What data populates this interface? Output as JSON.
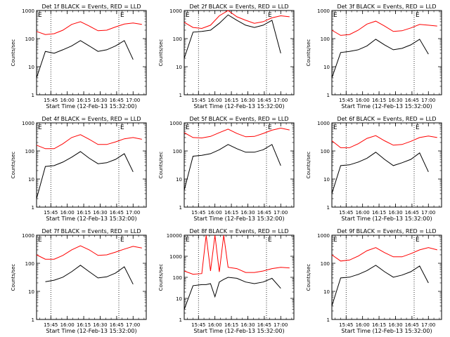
{
  "xaxis": {
    "label": "Start Time (12-Feb-13 15:32:00)",
    "ticks": [
      "15:45",
      "16:00",
      "16:15",
      "16:30",
      "16:45",
      "17:00"
    ],
    "tick_minutes": [
      13,
      28,
      43,
      58,
      73,
      88
    ],
    "xlim_minutes": [
      0,
      100
    ],
    "vlines_minutes": [
      13,
      75
    ]
  },
  "yaxis": {
    "label": "Counts/sec",
    "scale": "log",
    "ylim": [
      1,
      1000
    ],
    "ylim_det8": [
      1,
      10000
    ],
    "ticks": [
      "1",
      "10",
      "100",
      "1000"
    ],
    "ticks_det8": [
      "1",
      "10",
      "100",
      "1000",
      "10000"
    ]
  },
  "corner_label": "E",
  "colors": {
    "events": "#000000",
    "lld": "#ff0000"
  },
  "chart_data": [
    {
      "type": "line",
      "title": "Det 1f BLACK = Events, RED = LLD",
      "x": [
        0,
        8,
        16,
        24,
        32,
        40,
        48,
        56,
        64,
        72,
        80,
        88,
        96
      ],
      "series": [
        {
          "name": "Events",
          "values": [
            4,
            35,
            30,
            40,
            55,
            85,
            55,
            35,
            40,
            55,
            85,
            18,
            null
          ]
        },
        {
          "name": "LLD",
          "values": [
            180,
            140,
            150,
            200,
            320,
            400,
            280,
            190,
            200,
            260,
            330,
            360,
            320
          ]
        }
      ]
    },
    {
      "type": "line",
      "title": "Det 2f BLACK = Events, RED = LLD",
      "x": [
        0,
        8,
        16,
        24,
        32,
        40,
        48,
        56,
        64,
        72,
        80,
        88,
        96
      ],
      "series": [
        {
          "name": "Events",
          "values": [
            20,
            170,
            180,
            200,
            350,
            700,
            450,
            300,
            250,
            300,
            450,
            30,
            null
          ]
        },
        {
          "name": "LLD",
          "values": [
            380,
            250,
            230,
            300,
            650,
            1000,
            600,
            450,
            350,
            400,
            550,
            650,
            600
          ]
        }
      ]
    },
    {
      "type": "line",
      "title": "Det 3f BLACK = Events, RED = LLD",
      "x": [
        0,
        8,
        16,
        24,
        32,
        40,
        48,
        56,
        64,
        72,
        80,
        88,
        96
      ],
      "series": [
        {
          "name": "Events",
          "values": [
            4,
            32,
            35,
            40,
            55,
            95,
            60,
            40,
            45,
            60,
            95,
            28,
            null
          ]
        },
        {
          "name": "LLD",
          "values": [
            200,
            130,
            140,
            200,
            330,
            420,
            280,
            180,
            190,
            240,
            320,
            300,
            280
          ]
        }
      ]
    },
    {
      "type": "line",
      "title": "Det 4f BLACK = Events, RED = LLD",
      "x": [
        0,
        8,
        16,
        24,
        32,
        40,
        48,
        56,
        64,
        72,
        80,
        88,
        96
      ],
      "series": [
        {
          "name": "Events",
          "values": [
            2,
            28,
            30,
            40,
            60,
            95,
            55,
            35,
            38,
            50,
            80,
            18,
            null
          ]
        },
        {
          "name": "LLD",
          "values": [
            160,
            120,
            120,
            180,
            300,
            380,
            260,
            170,
            170,
            210,
            270,
            300,
            260
          ]
        }
      ]
    },
    {
      "type": "line",
      "title": "Det 5f BLACK = Events, RED = LLD",
      "x": [
        0,
        8,
        16,
        24,
        32,
        40,
        48,
        56,
        64,
        72,
        80,
        88,
        96
      ],
      "series": [
        {
          "name": "Events",
          "values": [
            4,
            65,
            70,
            80,
            110,
            170,
            120,
            90,
            90,
            110,
            170,
            30,
            null
          ]
        },
        {
          "name": "LLD",
          "values": [
            450,
            300,
            290,
            330,
            450,
            600,
            420,
            320,
            330,
            420,
            550,
            650,
            560
          ]
        }
      ]
    },
    {
      "type": "line",
      "title": "Det 6f BLACK = Events, RED = LLD",
      "x": [
        0,
        8,
        16,
        24,
        32,
        40,
        48,
        56,
        64,
        72,
        80,
        88,
        96
      ],
      "series": [
        {
          "name": "Events",
          "values": [
            3,
            30,
            32,
            40,
            55,
            90,
            50,
            30,
            38,
            50,
            85,
            18,
            null
          ]
        },
        {
          "name": "LLD",
          "values": [
            230,
            130,
            130,
            180,
            280,
            350,
            230,
            160,
            170,
            220,
            300,
            340,
            300
          ]
        }
      ]
    },
    {
      "type": "line",
      "title": "Det 7f BLACK = Events, RED = LLD",
      "x": [
        0,
        8,
        16,
        24,
        32,
        40,
        48,
        56,
        64,
        72,
        80,
        88,
        96
      ],
      "series": [
        {
          "name": "Events",
          "values": [
            null,
            22,
            25,
            32,
            50,
            85,
            50,
            30,
            33,
            45,
            75,
            18,
            null
          ]
        },
        {
          "name": "LLD",
          "values": [
            200,
            140,
            140,
            190,
            300,
            420,
            300,
            190,
            200,
            250,
            320,
            400,
            350
          ]
        }
      ]
    },
    {
      "type": "line",
      "title": "Det 8f BLACK = Events, RED = LLD",
      "x": [
        0,
        8,
        16,
        20,
        24,
        28,
        32,
        36,
        40,
        48,
        56,
        64,
        72,
        80,
        88,
        96
      ],
      "series": [
        {
          "name": "Events",
          "values": [
            3,
            40,
            45,
            45,
            50,
            12,
            60,
            80,
            100,
            90,
            60,
            50,
            60,
            90,
            30,
            null
          ]
        },
        {
          "name": "LLD",
          "values": [
            200,
            140,
            150,
            10000,
            200,
            10000,
            180,
            10000,
            300,
            260,
            170,
            170,
            200,
            260,
            300,
            280
          ]
        }
      ]
    },
    {
      "type": "line",
      "title": "Det 9f BLACK = Events, RED = LLD",
      "x": [
        0,
        8,
        16,
        24,
        32,
        40,
        48,
        56,
        64,
        72,
        80,
        88,
        96
      ],
      "series": [
        {
          "name": "Events",
          "values": [
            3,
            30,
            32,
            40,
            55,
            85,
            50,
            32,
            38,
            50,
            80,
            20,
            null
          ]
        },
        {
          "name": "LLD",
          "values": [
            200,
            120,
            130,
            180,
            280,
            360,
            240,
            170,
            170,
            220,
            300,
            360,
            300
          ]
        }
      ]
    }
  ]
}
